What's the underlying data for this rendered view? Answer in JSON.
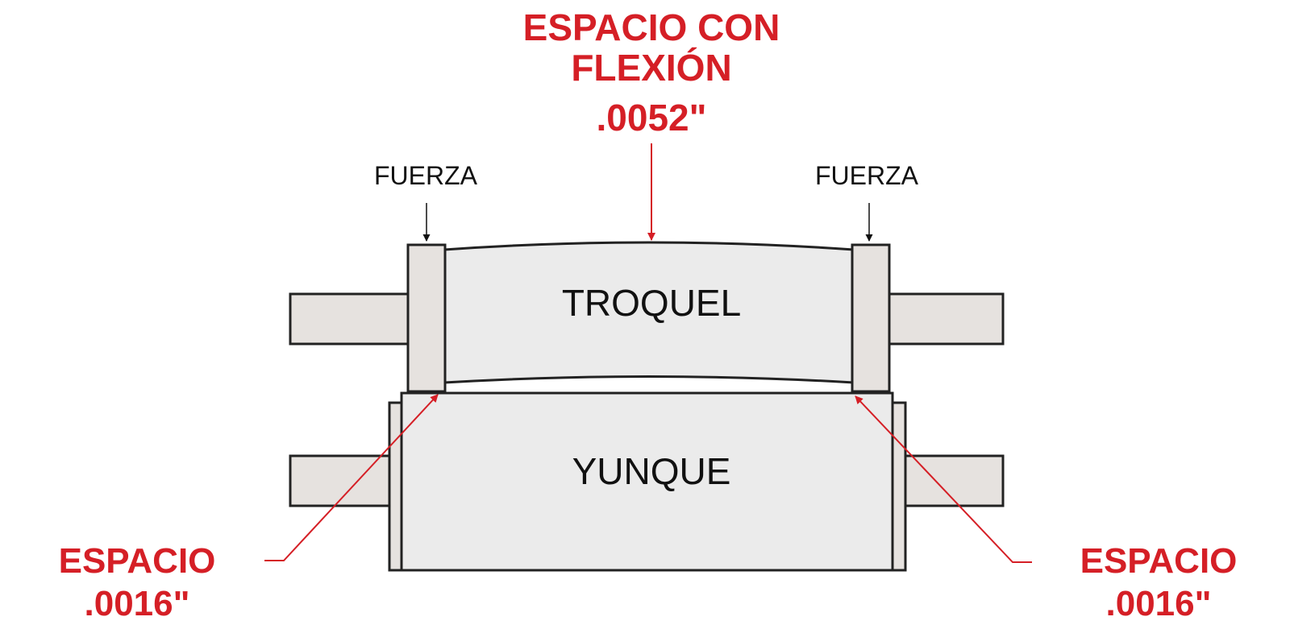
{
  "labels": {
    "top_callout_line1": "ESPACIO CON",
    "top_callout_line2": "FLEXIÓN",
    "top_callout_value": ".0052\"",
    "force_left": "FUERZA",
    "force_right": "FUERZA",
    "die": "TROQUEL",
    "anvil": "YUNQUE",
    "gap_left_title": "ESPACIO",
    "gap_left_value": ".0016\"",
    "gap_right_title": "ESPACIO",
    "gap_right_value": ".0016\""
  },
  "colors": {
    "accent_red": "#d51f26",
    "outline": "#222222",
    "body_fill": "#ebebeb",
    "shaft_fill": "#e6e2df"
  }
}
